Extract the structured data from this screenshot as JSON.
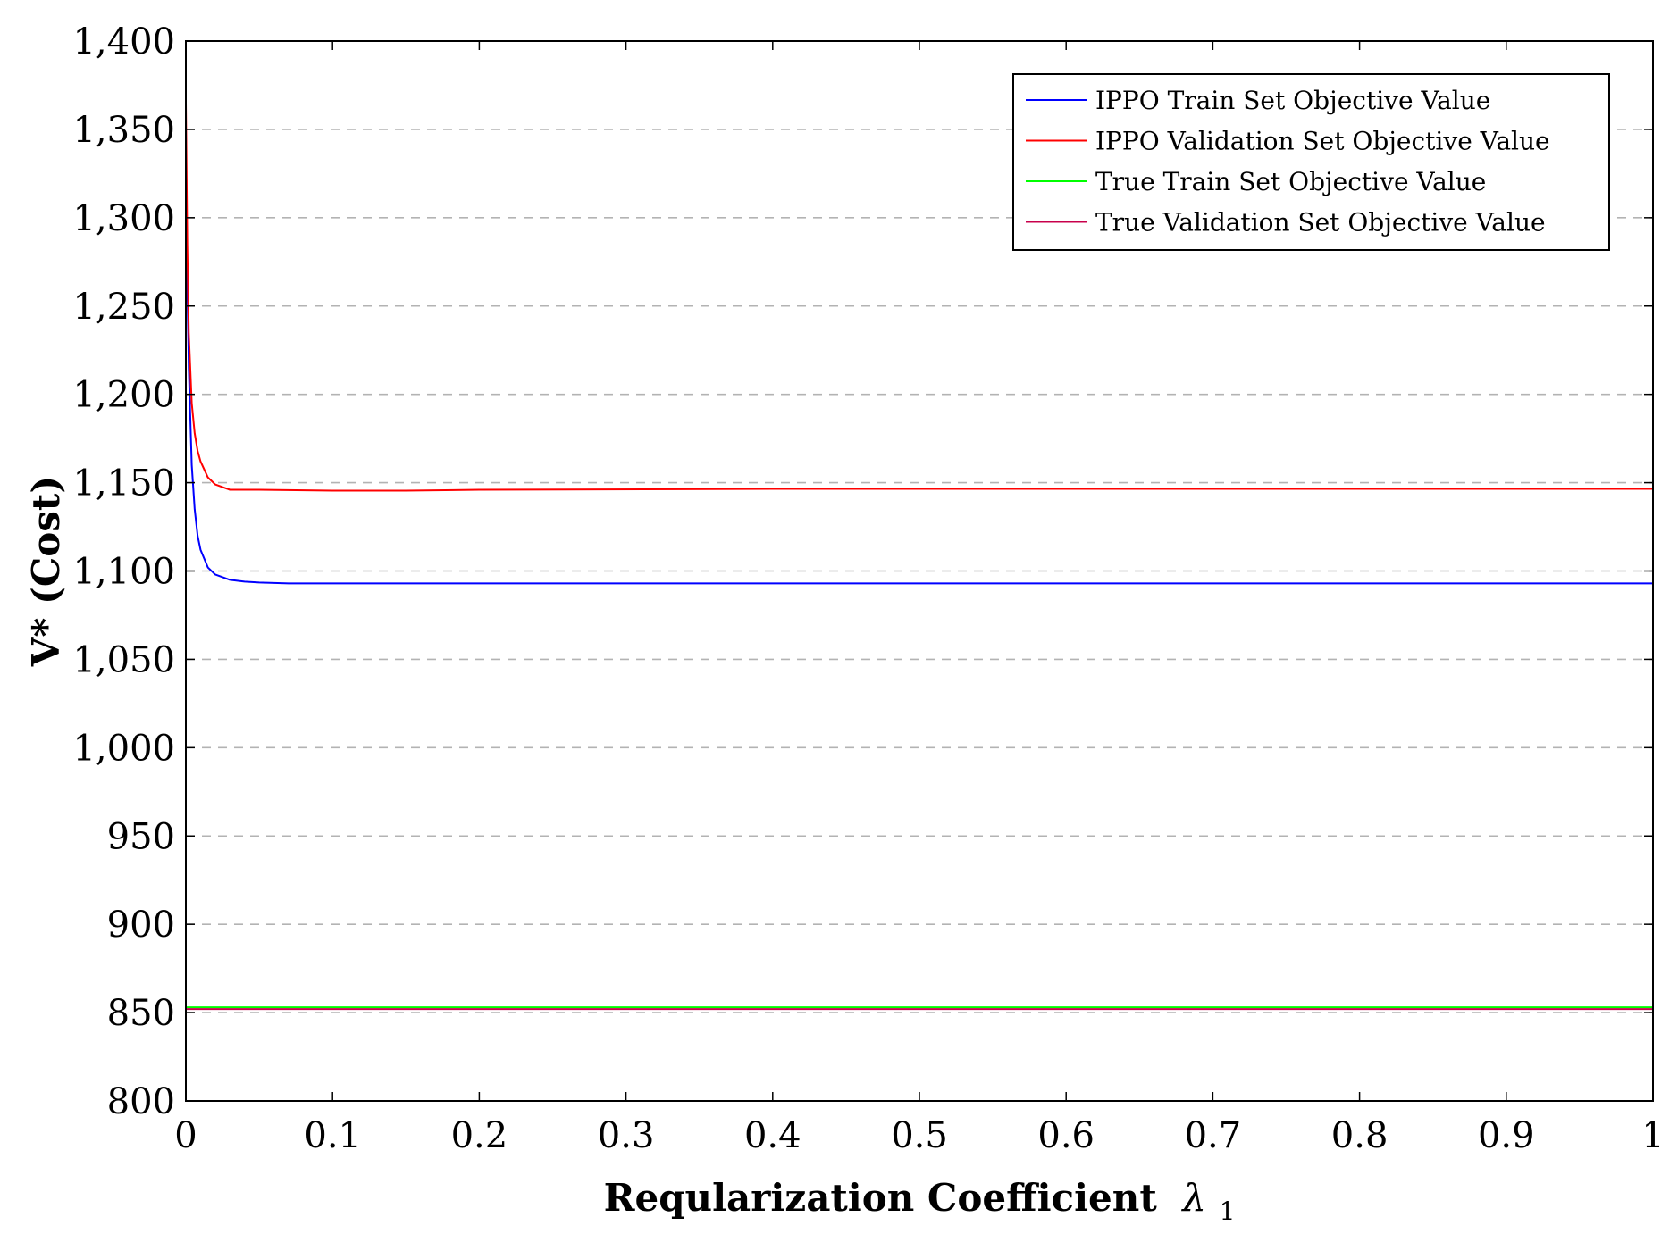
{
  "chart_data": {
    "type": "line",
    "title": "",
    "xlabel": "Reqularization Coefficient",
    "xlabel_symbol": "λ",
    "xlabel_subscript": "1",
    "ylabel": "V* (Cost)",
    "xlim": [
      0,
      1
    ],
    "ylim": [
      800,
      1400
    ],
    "x_ticks": [
      0,
      0.1,
      0.2,
      0.3,
      0.4,
      0.5,
      0.6,
      0.7,
      0.8,
      0.9,
      1
    ],
    "x_tick_labels": [
      "0",
      "0.1",
      "0.2",
      "0.3",
      "0.4",
      "0.5",
      "0.6",
      "0.7",
      "0.8",
      "0.9",
      "1"
    ],
    "y_ticks": [
      800,
      850,
      900,
      950,
      1000,
      1050,
      1100,
      1150,
      1200,
      1250,
      1300,
      1350,
      1400
    ],
    "y_tick_labels": [
      "800",
      "850",
      "900",
      "950",
      "1,000",
      "1,050",
      "1,100",
      "1,150",
      "1,200",
      "1,250",
      "1,300",
      "1,350",
      "1,400"
    ],
    "grid": "horizontal dashed",
    "legend_position": "top-right",
    "series": [
      {
        "name": "IPPO Train Set Objective Value",
        "color": "#0000ff",
        "x": [
          0,
          0.001,
          0.002,
          0.004,
          0.006,
          0.008,
          0.01,
          0.015,
          0.02,
          0.03,
          0.04,
          0.05,
          0.07,
          0.1,
          0.2,
          0.4,
          0.6,
          0.8,
          1.0
        ],
        "y": [
          1350,
          1265,
          1215,
          1160,
          1135,
          1120,
          1112,
          1102,
          1098,
          1095,
          1094,
          1093.5,
          1093,
          1093,
          1093,
          1093,
          1093,
          1093,
          1093
        ]
      },
      {
        "name": "IPPO Validation Set Objective Value",
        "color": "#ff0000",
        "x": [
          0,
          0.001,
          0.002,
          0.004,
          0.006,
          0.008,
          0.01,
          0.015,
          0.02,
          0.03,
          0.04,
          0.05,
          0.1,
          0.15,
          0.2,
          0.4,
          0.6,
          0.8,
          1.0
        ],
        "y": [
          1365,
          1285,
          1235,
          1195,
          1178,
          1168,
          1162,
          1153,
          1149,
          1146,
          1146,
          1146,
          1145.5,
          1145.5,
          1146,
          1146.5,
          1146.5,
          1146.5,
          1146.5
        ]
      },
      {
        "name": "True Train Set Objective Value",
        "color": "#00ff00",
        "x": [
          0,
          1
        ],
        "y": [
          853,
          853
        ]
      },
      {
        "name": "True Validation Set Objective Value",
        "color": "#c8004b",
        "x": [
          0,
          1
        ],
        "y": [
          852,
          852
        ]
      }
    ]
  }
}
